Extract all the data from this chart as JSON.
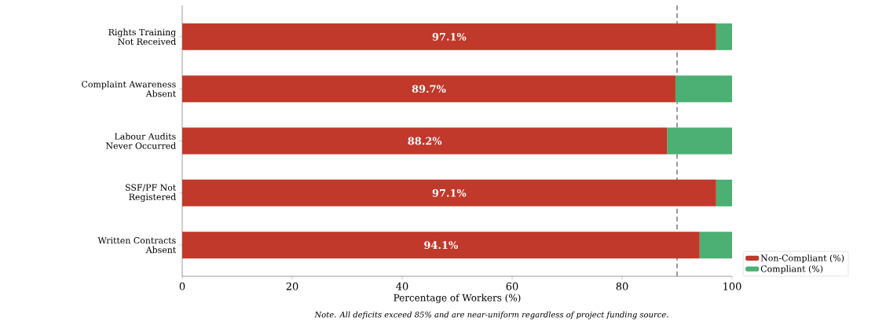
{
  "chart_data": {
    "type": "bar",
    "orientation": "horizontal",
    "stacked": true,
    "categories": [
      "Rights Training\nNot Received",
      "Complaint Awareness\nAbsent",
      "Labour Audits\nNever Occurred",
      "SSF/PF Not\nRegistered",
      "Written Contracts\nAbsent"
    ],
    "series": [
      {
        "name": "Non-Compliant (%)",
        "color": "#c0392b",
        "values": [
          97.1,
          89.7,
          88.2,
          97.1,
          94.1
        ],
        "value_labels": [
          "97.1%",
          "89.7%",
          "88.2%",
          "97.1%",
          "94.1%"
        ]
      },
      {
        "name": "Compliant (%)",
        "color": "#4caf73",
        "values": [
          2.9,
          10.3,
          11.8,
          2.9,
          5.9
        ]
      }
    ],
    "xlabel": "Percentage of Workers (%)",
    "xlim": [
      0,
      100
    ],
    "xticks": [
      0,
      20,
      40,
      60,
      80,
      100
    ],
    "ref_lines": [
      {
        "axis": "x",
        "value": 90,
        "color": "#555555",
        "line_style": "dashed"
      }
    ],
    "legend": "bottom right",
    "grid": false,
    "annotations": [
      "*Note.* *All deficits exceed 85% and are near-uniform regardless of project funding source.*"
    ]
  }
}
